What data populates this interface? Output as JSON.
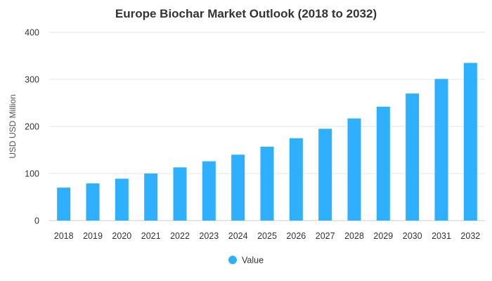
{
  "chart_data": {
    "type": "bar",
    "title": "Europe Biochar Market Outlook (2018 to 2032)",
    "ylabel": "USD USD Million",
    "xlabel": "",
    "categories": [
      "2018",
      "2019",
      "2020",
      "2021",
      "2022",
      "2023",
      "2024",
      "2025",
      "2026",
      "2027",
      "2028",
      "2029",
      "2030",
      "2031",
      "2032"
    ],
    "series": [
      {
        "name": "Value",
        "color": "#2eb0ff",
        "values": [
          70,
          79,
          89,
          100,
          113,
          126,
          140,
          157,
          175,
          195,
          217,
          242,
          270,
          301,
          335
        ]
      }
    ],
    "ylim": [
      0,
      400
    ],
    "yticks": [
      0,
      100,
      200,
      300,
      400
    ],
    "grid": true,
    "legend": "bottom-center"
  }
}
